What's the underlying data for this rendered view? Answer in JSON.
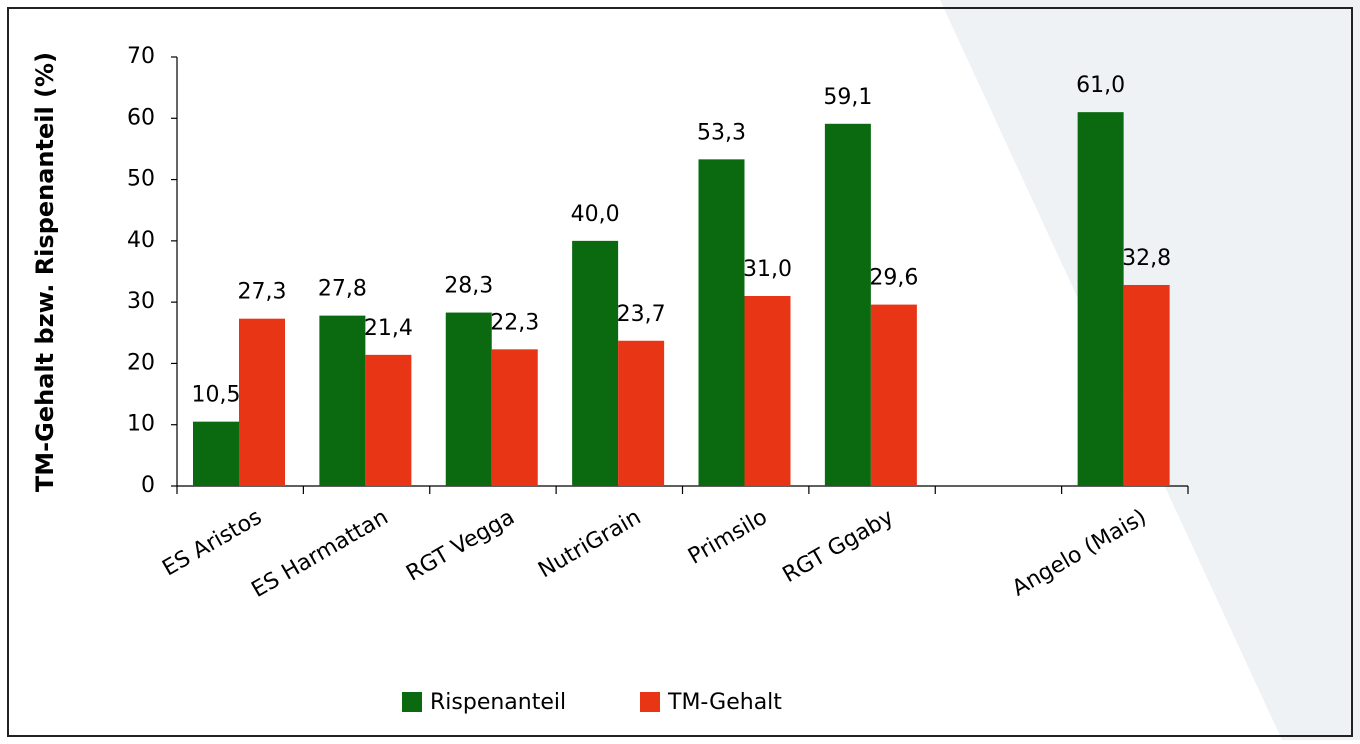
{
  "chart_data": {
    "type": "bar",
    "y_label": "TM-Gehalt bzw. Rispenanteil (%)",
    "categories": [
      "ES Aristos",
      "ES Harmattan",
      "RGT Vegga",
      "NutriGrain",
      "Primsilo",
      "RGT Ggaby",
      null,
      "Angelo (Mais)"
    ],
    "series": [
      {
        "name": "Rispenanteil",
        "color": "#0b6a10",
        "values": [
          10.5,
          27.8,
          28.3,
          40.0,
          53.3,
          59.1,
          null,
          61.0
        ],
        "value_labels": [
          "10,5",
          "27,8",
          "28,3",
          "40,0",
          "53,3",
          "59,1",
          null,
          "61,0"
        ]
      },
      {
        "name": "TM-Gehalt",
        "color": "#e83516",
        "values": [
          27.3,
          21.4,
          22.3,
          23.7,
          31.0,
          29.6,
          null,
          32.8
        ],
        "value_labels": [
          "27,3",
          "21,4",
          "22,3",
          "23,7",
          "31,0",
          "29,6",
          null,
          "32,8"
        ]
      }
    ],
    "ylim": [
      0,
      70
    ],
    "yticks": [
      0,
      10,
      20,
      30,
      40,
      50,
      60,
      70
    ],
    "grid": false,
    "legend": "bottom"
  }
}
